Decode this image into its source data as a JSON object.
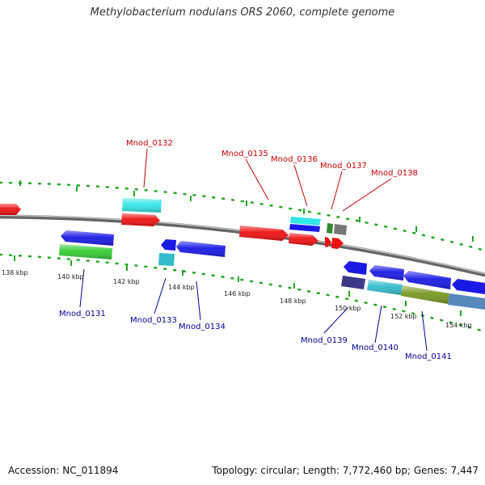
{
  "title": "Methylobacterium nodulans ORS 2060, complete genome",
  "accession": "Accession: NC_011894",
  "topology": "Topology: circular; Length: 7,772,460 bp; Genes: 7,447",
  "ticks": [
    "138 kbp",
    "140 kbp",
    "142 kbp",
    "144 kbp",
    "146 kbp",
    "148 kbp",
    "150 kbp",
    "152 kbp",
    "154 kbp"
  ],
  "genes_top": [
    "Mnod_0132",
    "Mnod_0135",
    "Mnod_0136",
    "Mnod_0137",
    "Mnod_0138"
  ],
  "genes_bottom": [
    "Mnod_0131",
    "Mnod_0133",
    "Mnod_0134",
    "Mnod_0139",
    "Mnod_0140",
    "Mnod_0141"
  ],
  "colors": {
    "red": "#ee1111",
    "blue": "#1a1ae6",
    "cyan": "#33e6e6",
    "green": "#33cc33",
    "teal": "#33bbcc",
    "navy": "#3a3a88",
    "olive": "#779922",
    "steel": "#5588bb",
    "darkgreen": "#338833",
    "gray": "#777777",
    "tick": "#22aa22",
    "red_label": "#cc0000",
    "blue_label": "#000099"
  }
}
